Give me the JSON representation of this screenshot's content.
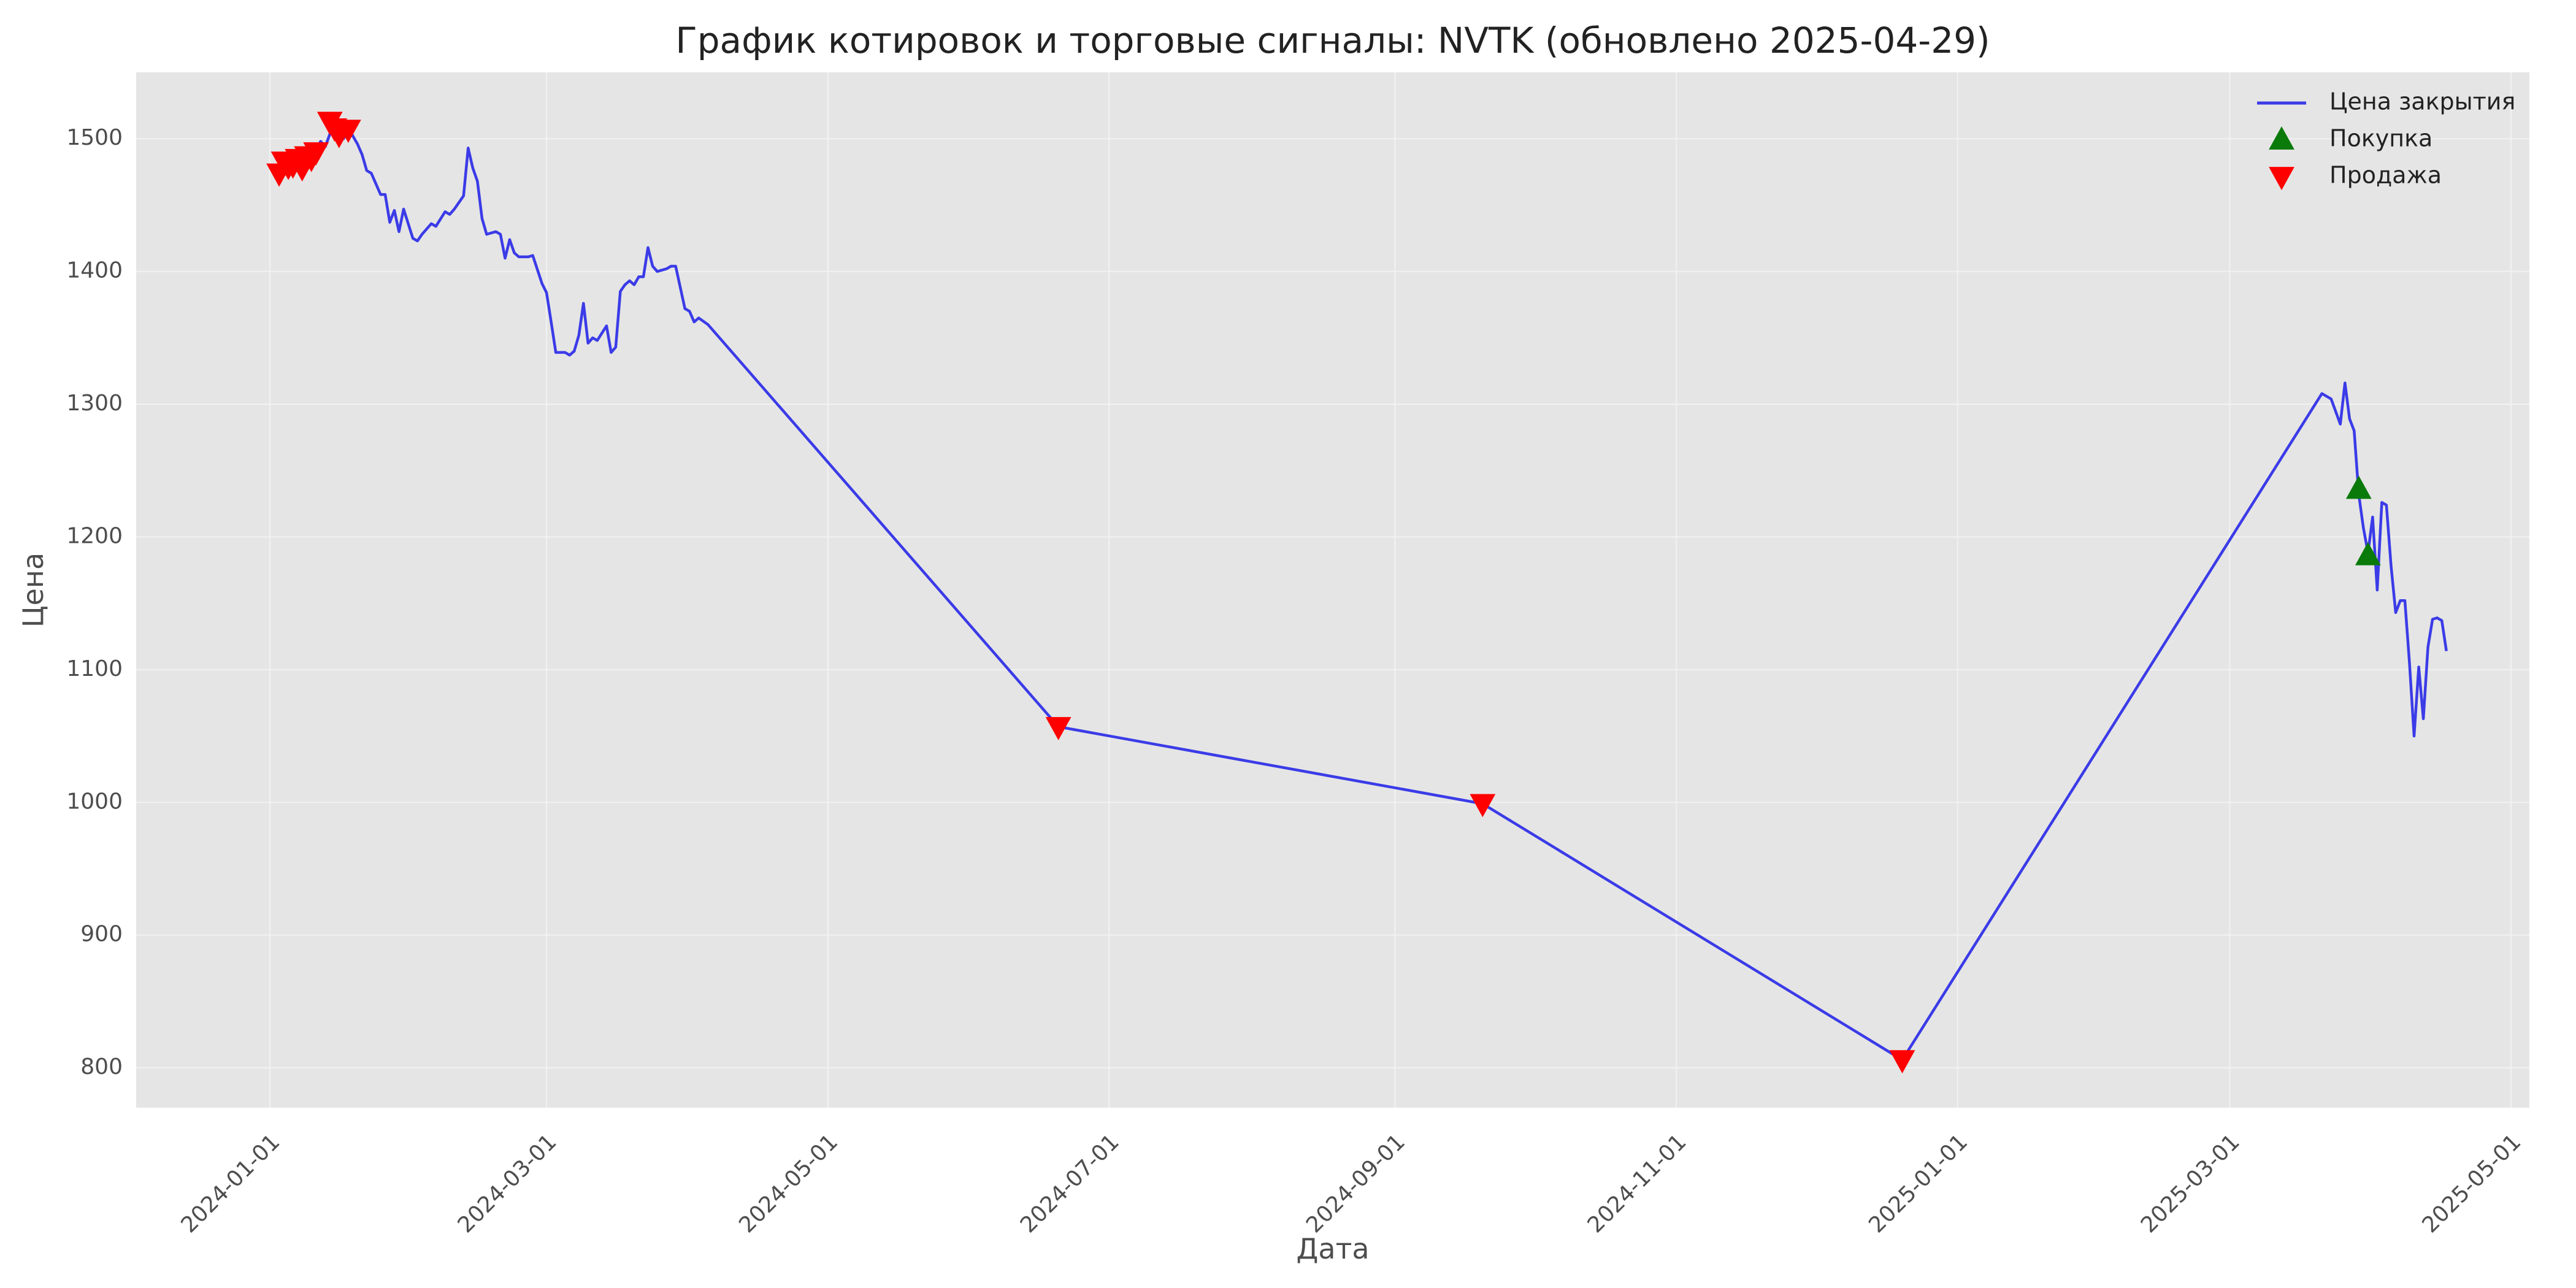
{
  "chart_data": {
    "type": "line",
    "title": "График котировок и торговые сигналы: NVTK (обновлено 2025-04-29)",
    "xlabel": "Дата",
    "ylabel": "Цена",
    "xlim": [
      "2023-12-03",
      "2025-05-05"
    ],
    "ylim": [
      770,
      1550
    ],
    "grid": true,
    "legend_position": "top-right",
    "x_ticks": [
      "2024-01-01",
      "2024-03-01",
      "2024-05-01",
      "2024-07-01",
      "2024-09-01",
      "2024-11-01",
      "2025-01-01",
      "2025-03-01",
      "2025-05-01"
    ],
    "y_ticks": [
      800,
      900,
      1000,
      1100,
      1200,
      1300,
      1400,
      1500
    ],
    "colors": {
      "plot_bg": "#e5e5e5",
      "grid": "#f2f2f2",
      "line": "#3b3be8",
      "buy": "#0a7a0a",
      "sell": "#ff0000"
    },
    "series": [
      {
        "name": "Цена закрытия",
        "style": "line",
        "points": [
          [
            "2024-01-03",
            1477
          ],
          [
            "2024-01-04",
            1483
          ],
          [
            "2024-01-05",
            1479
          ],
          [
            "2024-01-06",
            1486
          ],
          [
            "2024-01-08",
            1481
          ],
          [
            "2024-01-09",
            1489
          ],
          [
            "2024-01-10",
            1484
          ],
          [
            "2024-01-11",
            1491
          ],
          [
            "2024-01-12",
            1498
          ],
          [
            "2024-01-13",
            1494
          ],
          [
            "2024-01-15",
            1513
          ],
          [
            "2024-01-16",
            1506
          ],
          [
            "2024-01-17",
            1500
          ],
          [
            "2024-01-18",
            1510
          ],
          [
            "2024-01-19",
            1502
          ],
          [
            "2024-01-20",
            1496
          ],
          [
            "2024-01-21",
            1488
          ],
          [
            "2024-01-22",
            1476
          ],
          [
            "2024-01-23",
            1474
          ],
          [
            "2024-01-25",
            1458
          ],
          [
            "2024-01-26",
            1458
          ],
          [
            "2024-01-27",
            1437
          ],
          [
            "2024-01-28",
            1446
          ],
          [
            "2024-01-29",
            1430
          ],
          [
            "2024-01-30",
            1447
          ],
          [
            "2024-02-01",
            1425
          ],
          [
            "2024-02-02",
            1423
          ],
          [
            "2024-02-03",
            1428
          ],
          [
            "2024-02-05",
            1436
          ],
          [
            "2024-02-06",
            1434
          ],
          [
            "2024-02-08",
            1445
          ],
          [
            "2024-02-09",
            1443
          ],
          [
            "2024-02-10",
            1447
          ],
          [
            "2024-02-12",
            1457
          ],
          [
            "2024-02-13",
            1493
          ],
          [
            "2024-02-14",
            1478
          ],
          [
            "2024-02-15",
            1468
          ],
          [
            "2024-02-16",
            1440
          ],
          [
            "2024-02-17",
            1428
          ],
          [
            "2024-02-19",
            1430
          ],
          [
            "2024-02-20",
            1428
          ],
          [
            "2024-02-21",
            1410
          ],
          [
            "2024-02-22",
            1424
          ],
          [
            "2024-02-23",
            1414
          ],
          [
            "2024-02-24",
            1411
          ],
          [
            "2024-02-26",
            1411
          ],
          [
            "2024-02-27",
            1412
          ],
          [
            "2024-02-29",
            1391
          ],
          [
            "2024-03-01",
            1384
          ],
          [
            "2024-03-02",
            1362
          ],
          [
            "2024-03-03",
            1339
          ],
          [
            "2024-03-05",
            1339
          ],
          [
            "2024-03-06",
            1337
          ],
          [
            "2024-03-07",
            1340
          ],
          [
            "2024-03-08",
            1352
          ],
          [
            "2024-03-09",
            1376
          ],
          [
            "2024-03-10",
            1346
          ],
          [
            "2024-03-11",
            1350
          ],
          [
            "2024-03-12",
            1348
          ],
          [
            "2024-03-14",
            1359
          ],
          [
            "2024-03-15",
            1339
          ],
          [
            "2024-03-16",
            1343
          ],
          [
            "2024-03-17",
            1385
          ],
          [
            "2024-03-18",
            1390
          ],
          [
            "2024-03-19",
            1393
          ],
          [
            "2024-03-20",
            1390
          ],
          [
            "2024-03-21",
            1396
          ],
          [
            "2024-03-22",
            1396
          ],
          [
            "2024-03-23",
            1418
          ],
          [
            "2024-03-24",
            1404
          ],
          [
            "2024-03-25",
            1400
          ],
          [
            "2024-03-27",
            1402
          ],
          [
            "2024-03-28",
            1404
          ],
          [
            "2024-03-29",
            1404
          ],
          [
            "2024-03-31",
            1372
          ],
          [
            "2024-04-01",
            1370
          ],
          [
            "2024-04-02",
            1362
          ],
          [
            "2024-04-03",
            1365
          ],
          [
            "2024-04-05",
            1360
          ],
          [
            "2024-06-20",
            1057
          ],
          [
            "2024-09-20",
            999
          ],
          [
            "2024-12-20",
            806
          ],
          [
            "2025-03-21",
            1308
          ],
          [
            "2025-03-23",
            1304
          ],
          [
            "2025-03-25",
            1285
          ],
          [
            "2025-03-26",
            1316
          ],
          [
            "2025-03-27",
            1289
          ],
          [
            "2025-03-28",
            1280
          ],
          [
            "2025-03-29",
            1232
          ],
          [
            "2025-03-30",
            1207
          ],
          [
            "2025-03-31",
            1188
          ],
          [
            "2025-04-01",
            1215
          ],
          [
            "2025-04-02",
            1160
          ],
          [
            "2025-04-03",
            1226
          ],
          [
            "2025-04-04",
            1224
          ],
          [
            "2025-04-05",
            1178
          ],
          [
            "2025-04-06",
            1143
          ],
          [
            "2025-04-07",
            1152
          ],
          [
            "2025-04-08",
            1152
          ],
          [
            "2025-04-09",
            1105
          ],
          [
            "2025-04-10",
            1050
          ],
          [
            "2025-04-11",
            1102
          ],
          [
            "2025-04-12",
            1063
          ],
          [
            "2025-04-13",
            1117
          ],
          [
            "2025-04-14",
            1138
          ],
          [
            "2025-04-15",
            1139
          ],
          [
            "2025-04-16",
            1137
          ],
          [
            "2025-04-17",
            1114
          ]
        ]
      },
      {
        "name": "Покупка",
        "style": "marker-up",
        "points": [
          [
            "2025-03-29",
            1236
          ],
          [
            "2025-03-31",
            1186
          ]
        ]
      },
      {
        "name": "Продажа",
        "style": "marker-down",
        "points": [
          [
            "2024-01-03",
            1474
          ],
          [
            "2024-01-04",
            1483
          ],
          [
            "2024-01-05",
            1479
          ],
          [
            "2024-01-06",
            1480
          ],
          [
            "2024-01-07",
            1485
          ],
          [
            "2024-01-08",
            1478
          ],
          [
            "2024-01-09",
            1487
          ],
          [
            "2024-01-10",
            1485
          ],
          [
            "2024-01-11",
            1490
          ],
          [
            "2024-01-14",
            1513
          ],
          [
            "2024-01-15",
            1508
          ],
          [
            "2024-01-16",
            1503
          ],
          [
            "2024-01-18",
            1507
          ],
          [
            "2024-06-20",
            1057
          ],
          [
            "2024-09-20",
            999
          ],
          [
            "2024-12-20",
            806
          ]
        ]
      }
    ]
  }
}
